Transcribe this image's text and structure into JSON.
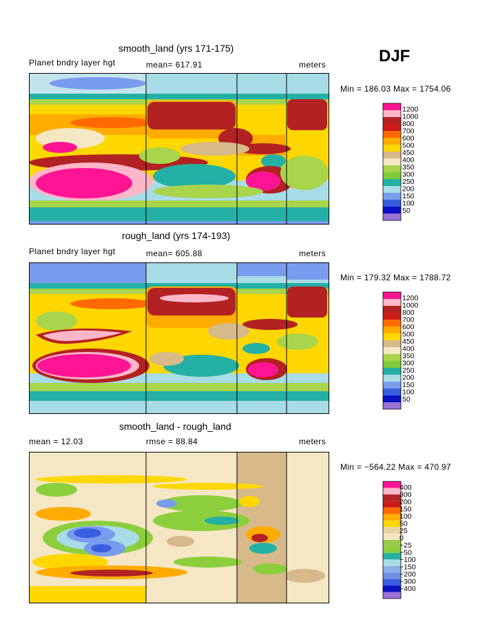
{
  "season": "DJF",
  "palettes": {
    "abs": [
      "#9a72d6",
      "#0a0fc2",
      "#3a5ee0",
      "#7a9cee",
      "#a8dce6",
      "#24b0a4",
      "#7fcc3a",
      "#a8d54c",
      "#f5e6c4",
      "#d7b98a",
      "#ffd700",
      "#ffab00",
      "#ff6a00",
      "#cc1a1a",
      "#b22222",
      "#ffb6c8",
      "#ff1493"
    ],
    "diff": [
      "#9a72d6",
      "#0a0fc2",
      "#3a5ee0",
      "#6f90e2",
      "#8ab0ea",
      "#a8dce6",
      "#24b0a4",
      "#8ccf3c",
      "#9cc84c",
      "#f5e6c4",
      "#e8d3a2",
      "#ffd700",
      "#ffab00",
      "#ff6a00",
      "#cc1a1a",
      "#b22222",
      "#ffb6c8",
      "#ff1493"
    ]
  },
  "panels": [
    {
      "title": "smooth_land (yrs 171-175)",
      "left_label": "Planet bndry layer hgt",
      "mid_label": "mean= 617.91",
      "right_label": "meters",
      "minmax": "Min = 186.03 Max = 1754.06",
      "colorbar_labels": [
        "1200",
        "1000",
        "800",
        "700",
        "600",
        "500",
        "450",
        "400",
        "350",
        "300",
        "250",
        "200",
        "150",
        "100",
        "50"
      ]
    },
    {
      "title": "rough_land (yrs 174-193)",
      "left_label": "Planet bndry layer hgt",
      "mid_label": "mean= 605.88",
      "right_label": "meters",
      "minmax": "Min = 179.32 Max = 1788.72",
      "colorbar_labels": [
        "1200",
        "1000",
        "800",
        "700",
        "600",
        "500",
        "450",
        "400",
        "350",
        "300",
        "250",
        "200",
        "150",
        "100",
        "50"
      ]
    },
    {
      "title": "smooth_land - rough_land",
      "left_label": "mean =   12.03",
      "mid_label": "rmse =  88.84",
      "right_label": "meters",
      "minmax": "Min = −564.22 Max = 470.97",
      "colorbar_labels": [
        "400",
        "300",
        "200",
        "150",
        "100",
        "50",
        "25",
        "0",
        "−25",
        "−50",
        "−100",
        "−150",
        "−200",
        "−300",
        "−400"
      ]
    }
  ],
  "chart_data": [
    {
      "type": "heatmap",
      "title": "smooth_land (yrs 171-175)",
      "field": "Planet bndry layer hgt",
      "units": "meters",
      "mean": 617.91,
      "min": 186.03,
      "max": 1754.06,
      "levels": [
        50,
        100,
        150,
        200,
        250,
        300,
        350,
        400,
        450,
        500,
        600,
        700,
        800,
        1000,
        1200
      ]
    },
    {
      "type": "heatmap",
      "title": "rough_land (yrs 174-193)",
      "field": "Planet bndry layer hgt",
      "units": "meters",
      "mean": 605.88,
      "min": 179.32,
      "max": 1788.72,
      "levels": [
        50,
        100,
        150,
        200,
        250,
        300,
        350,
        400,
        450,
        500,
        600,
        700,
        800,
        1000,
        1200
      ]
    },
    {
      "type": "heatmap",
      "title": "smooth_land - rough_land",
      "units": "meters",
      "mean": 12.03,
      "rmse": 88.84,
      "min": -564.22,
      "max": 470.97,
      "levels": [
        -400,
        -300,
        -200,
        -150,
        -100,
        -50,
        -25,
        0,
        25,
        50,
        100,
        150,
        200,
        300,
        400
      ]
    }
  ]
}
